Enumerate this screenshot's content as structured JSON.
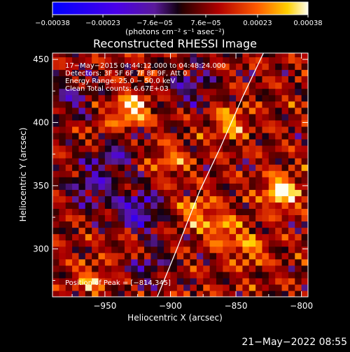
{
  "chart_data": {
    "type": "heatmap",
    "title": "Reconstructed RHESSI Image",
    "xlabel": "Heliocentric X (arcsec)",
    "ylabel": "Heliocentric Y (arcsec)",
    "xlim": [
      -990,
      -795
    ],
    "ylim": [
      262,
      455
    ],
    "x_ticks": [
      -950,
      -900,
      -850,
      -800
    ],
    "x_tick_labels": [
      "−950",
      "−900",
      "−850",
      "−800"
    ],
    "y_ticks": [
      300,
      350,
      400,
      450
    ],
    "y_tick_labels": [
      "300",
      "350",
      "400",
      "450"
    ],
    "colorbar": {
      "range": [
        -0.00038,
        0.00038
      ],
      "tick_values": [
        -0.00038,
        -0.00023,
        -7.6e-05,
        7.6e-05,
        0.00023,
        0.00038
      ],
      "tick_labels": [
        "−0.00038",
        "−0.00023",
        "−7.6e−05",
        "7.6e−05",
        "0.00023",
        "0.00038"
      ],
      "unit_label": "(photons cm⁻² s⁻¹ asec⁻²)"
    },
    "annotations": [
      "17−May−2015 04:44:12.000 to 04:48:24.000",
      "Detectors: 3F 5F 6F 7F 8F 9F, Att 0",
      "Energy Range: 25.0 − 50.0 keV",
      "Clean     Total counts: 6.67E+03"
    ],
    "peak_label": "Position of Peak = [−814,345]",
    "peak": [
      -814,
      345
    ],
    "limb_points": [
      [
        -910,
        262
      ],
      [
        -895,
        300
      ],
      [
        -878,
        345
      ],
      [
        -862,
        380
      ],
      [
        -845,
        420
      ],
      [
        -829,
        455
      ]
    ],
    "hotspots": [
      [
        -815,
        345,
        1.0
      ],
      [
        -930,
        410,
        0.85
      ],
      [
        -950,
        390,
        0.55
      ],
      [
        -855,
        400,
        0.6
      ],
      [
        -880,
        330,
        0.55
      ],
      [
        -860,
        315,
        0.55
      ],
      [
        -960,
        275,
        0.5
      ],
      [
        -840,
        300,
        0.5
      ],
      [
        -900,
        370,
        0.45
      ],
      [
        -930,
        300,
        0.4
      ]
    ],
    "coldspots": [
      [
        -945,
        380,
        0.6
      ],
      [
        -925,
        330,
        0.7
      ],
      [
        -960,
        350,
        0.5
      ],
      [
        -885,
        430,
        0.45
      ],
      [
        -920,
        290,
        0.45
      ],
      [
        -975,
        420,
        0.4
      ]
    ]
  },
  "footer": {
    "timestamp": "21−May−2022 08:55"
  }
}
